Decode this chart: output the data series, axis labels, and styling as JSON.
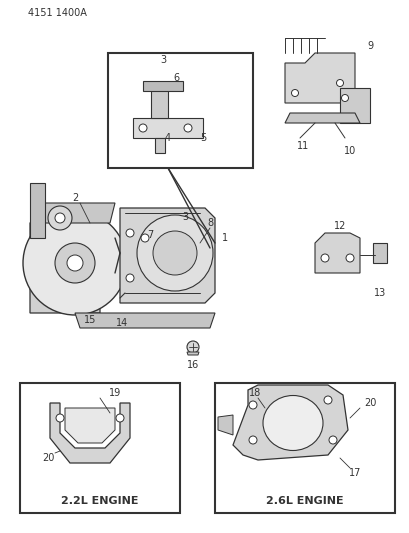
{
  "title": "4151 1400A",
  "background_color": "#ffffff",
  "line_color": "#333333",
  "fig_width": 4.1,
  "fig_height": 5.33,
  "dpi": 100,
  "labels": {
    "top_left": "4151  1400A",
    "inset_box_nums": [
      "3",
      "6",
      "4",
      "5"
    ],
    "top_right_nums": [
      "9",
      "11",
      "10"
    ],
    "right_side_nums": [
      "12",
      "13"
    ],
    "main_engine_nums": [
      "2",
      "7",
      "3",
      "8",
      "1",
      "15",
      "14"
    ],
    "bottom_center": "16",
    "box_22l": "2.2L ENGINE",
    "box_26l": "2.6L ENGINE",
    "box_22l_nums": [
      "19",
      "20"
    ],
    "box_26l_nums": [
      "18",
      "20",
      "17"
    ]
  }
}
